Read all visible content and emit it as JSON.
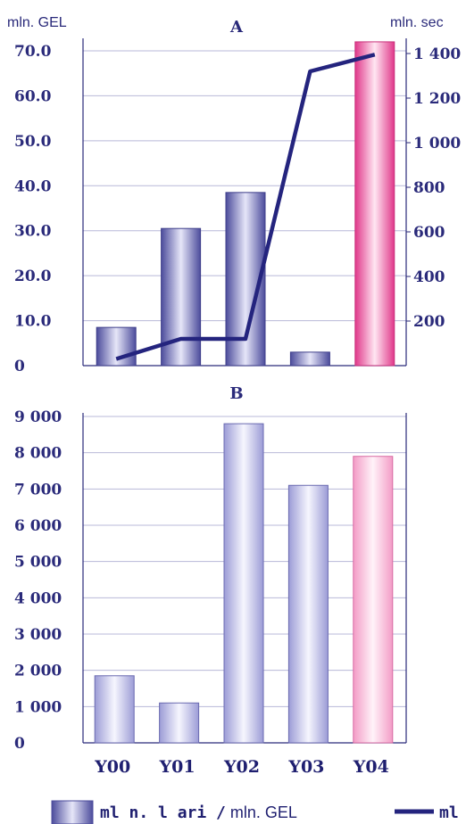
{
  "chart_data": [
    {
      "type": "bar",
      "panel": "A",
      "title": "A",
      "categories": [
        "Y00",
        "Y01",
        "Y02",
        "Y03",
        "Y04"
      ],
      "values": [
        8.5,
        30.5,
        38.5,
        3.0,
        72.0
      ],
      "ylabel_left": "mln. GEL",
      "ylabel_right": "mln. sec",
      "ylim": [
        0,
        70
      ],
      "yticks_left": [
        "0",
        "10.0",
        "20.0",
        "30.0",
        "40.0",
        "50.0",
        "60.0",
        "70.0"
      ],
      "ylim_right": [
        0,
        1400
      ],
      "yticks_right": [
        "200",
        "400",
        "600",
        "800",
        "1 000",
        "1 200",
        "1 400"
      ],
      "line_series": {
        "values": [
          30,
          120,
          120,
          1320,
          1395
        ]
      },
      "highlight_index": 4,
      "grid": "horizontal"
    },
    {
      "type": "bar",
      "panel": "B",
      "title": "B",
      "categories": [
        "Y00",
        "Y01",
        "Y02",
        "Y03",
        "Y04"
      ],
      "values": [
        1850,
        1100,
        8800,
        7100,
        7900
      ],
      "ylim": [
        0,
        9000
      ],
      "yticks": [
        "0",
        "1 000",
        "2 000",
        "3 000",
        "4 000",
        "5 000",
        "6 000",
        "7 000",
        "8 000",
        "9 000"
      ],
      "highlight_index": 4,
      "grid": "horizontal"
    }
  ],
  "legend": {
    "bar_label_bold": "ml n. l ari /",
    "bar_label_normal": " mln. GEL",
    "line_label": "ml"
  },
  "colors": {
    "axis": "#2a2a7a",
    "bar_dark": "#5a5aa8",
    "bar_light": "#dcdcf4",
    "bar_pink": "#e24a94",
    "bar_pink_light": "#ffe0ef",
    "bar_b": "#8a8acc",
    "bar_b_light": "#f2f2fc",
    "line": "#24247e"
  }
}
